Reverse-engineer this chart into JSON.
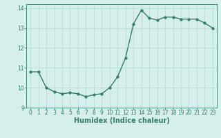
{
  "x": [
    0,
    1,
    2,
    3,
    4,
    5,
    6,
    7,
    8,
    9,
    10,
    11,
    12,
    13,
    14,
    15,
    16,
    17,
    18,
    19,
    20,
    21,
    22,
    23
  ],
  "y": [
    10.8,
    10.8,
    10.0,
    9.8,
    9.7,
    9.75,
    9.7,
    9.55,
    9.65,
    9.7,
    10.0,
    10.55,
    11.5,
    13.2,
    13.9,
    13.5,
    13.4,
    13.55,
    13.55,
    13.45,
    13.45,
    13.45,
    13.25,
    13.0
  ],
  "line_color": "#2e7d6e",
  "marker_color": "#2e7d6e",
  "bg_color": "#d6eeec",
  "grid_color": "#b8dbd8",
  "xlabel": "Humidex (Indice chaleur)",
  "ylabel": "",
  "ylim": [
    9.0,
    14.2
  ],
  "xlim": [
    -0.5,
    23.5
  ],
  "yticks": [
    9,
    10,
    11,
    12,
    13,
    14
  ],
  "xticks": [
    0,
    1,
    2,
    3,
    4,
    5,
    6,
    7,
    8,
    9,
    10,
    11,
    12,
    13,
    14,
    15,
    16,
    17,
    18,
    19,
    20,
    21,
    22,
    23
  ],
  "tick_fontsize": 5.5,
  "xlabel_fontsize": 7,
  "line_width": 1.0,
  "marker_size": 2.5
}
